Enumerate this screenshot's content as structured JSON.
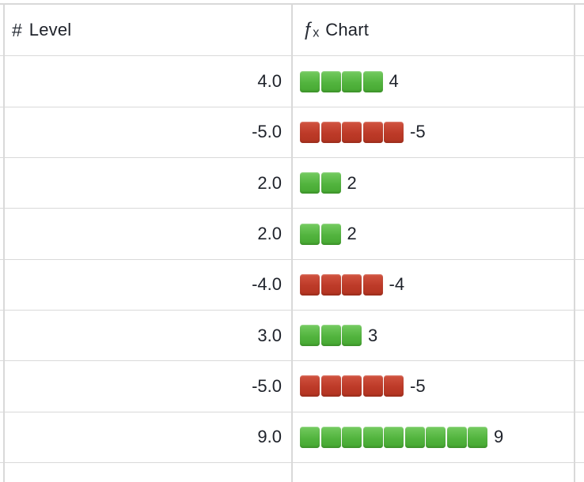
{
  "header": {
    "columns": [
      {
        "label": "Level",
        "type": "number",
        "icon": "hash-icon",
        "glyph": "#"
      },
      {
        "label": "Chart",
        "type": "formula",
        "icon": "formula-fx-icon",
        "glyph": "ƒₓ"
      }
    ]
  },
  "rows": [
    {
      "level": "4.0",
      "value": 4,
      "squares": 4,
      "color": "green",
      "label": "4"
    },
    {
      "level": "-5.0",
      "value": -5,
      "squares": 5,
      "color": "red",
      "label": "-5"
    },
    {
      "level": "2.0",
      "value": 2,
      "squares": 2,
      "color": "green",
      "label": "2"
    },
    {
      "level": "2.0",
      "value": 2,
      "squares": 2,
      "color": "green",
      "label": "2"
    },
    {
      "level": "-4.0",
      "value": -4,
      "squares": 4,
      "color": "red",
      "label": "-4"
    },
    {
      "level": "3.0",
      "value": 3,
      "squares": 3,
      "color": "green",
      "label": "3"
    },
    {
      "level": "-5.0",
      "value": -5,
      "squares": 5,
      "color": "red",
      "label": "-5"
    },
    {
      "level": "9.0",
      "value": 9,
      "squares": 9,
      "color": "green",
      "label": "9"
    }
  ],
  "colors": {
    "green-top": "#74cb60",
    "green-bottom": "#46a831",
    "red-top": "#d15340",
    "red-bottom": "#b23421",
    "border": "#d9d9d9",
    "text": "#1e222a"
  }
}
